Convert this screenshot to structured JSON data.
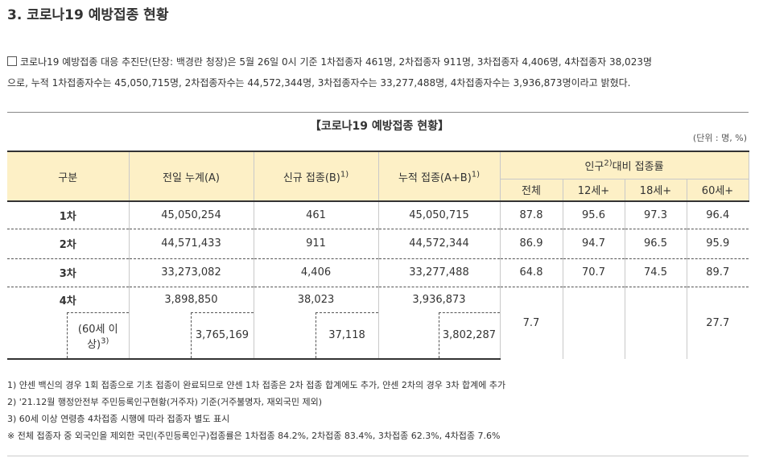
{
  "heading": "3. 코로나19 예방접종 현황",
  "intro": {
    "line1": "코로나19 예방접종 대응 추진단(단장: 백경란 청장)은 5월 26일 0시 기준 1차접종자 461명, 2차접종자 911명, 3차접종자 4,406명, 4차접종자 38,023명",
    "line2": "으로, 누적 1차접종자수는 45,050,715명, 2차접종자수는 44,572,344명, 3차접종자수는 33,277,488명, 4차접종자수는 3,936,873명이라고 밝혔다."
  },
  "table": {
    "title": "【코로나19 예방접종 현황】",
    "unit": "(단위 : 명, %)",
    "headers": {
      "category": "구분",
      "prev": "전일 누계(A)",
      "new": "신규 접종(B)",
      "new_sup": "1)",
      "cum": "누적 접종(A+B)",
      "cum_sup": "1)",
      "rate_pre": "인구",
      "rate_sup": "2)",
      "rate_post": "대비 접종률",
      "total": "전체",
      "age12": "12세+",
      "age18": "18세+",
      "age60": "60세+"
    },
    "rows": [
      {
        "label": "1차",
        "prev": "45,050,254",
        "new": "461",
        "cum": "45,050,715",
        "total": "87.8",
        "age12": "95.6",
        "age18": "97.3",
        "age60": "96.4"
      },
      {
        "label": "2차",
        "prev": "44,571,433",
        "new": "911",
        "cum": "44,572,344",
        "total": "86.9",
        "age12": "94.7",
        "age18": "96.5",
        "age60": "95.9"
      },
      {
        "label": "3차",
        "prev": "33,273,082",
        "new": "4,406",
        "cum": "33,277,488",
        "total": "64.8",
        "age12": "70.7",
        "age18": "74.5",
        "age60": "89.7"
      },
      {
        "label": "4차",
        "prev": "3,898,850",
        "new": "38,023",
        "cum": "3,936,873",
        "total": "7.7",
        "age12": "",
        "age18": "",
        "age60": "27.7"
      }
    ],
    "sub": {
      "label_line1": "(60세 이",
      "label_line2": "상)",
      "label_sup": "3)",
      "prev": "3,765,169",
      "new": "37,118",
      "cum": "3,802,287"
    }
  },
  "notes": [
    "1) 얀센 백신의 경우 1회 접종으로 기초 접종이 완료되므로 얀센 1차 접종은 2차 접종 합계에도 추가, 얀센 2차의 경우 3차 합계에 추가",
    "2) '21.12월 행정안전부 주민등록인구현황(거주자) 기준(거주불명자, 재외국민 제외)",
    "3) 60세 이상 연령층 4차접종 시행에 따라 접종자 별도 표시",
    "※ 전체 접종자 중 외국인을 제외한 국민(주민등록인구)접종률은 1차접종 84.2%, 2차접종 83.4%, 3차접종 62.3%, 4차접종 7.6%"
  ]
}
